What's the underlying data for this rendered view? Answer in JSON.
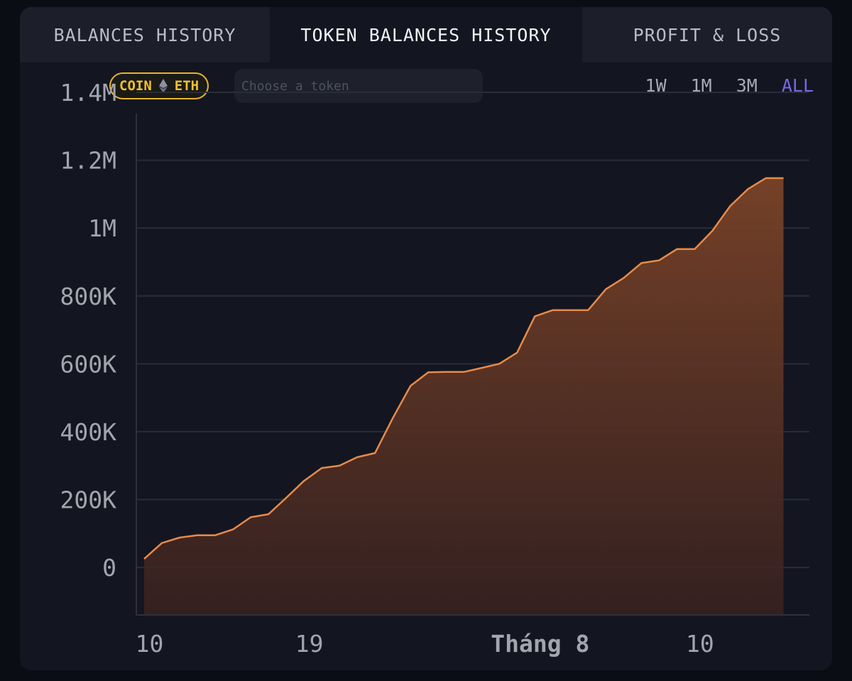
{
  "tabs": [
    {
      "label": "BALANCES HISTORY"
    },
    {
      "label": "TOKEN BALANCES HISTORY"
    },
    {
      "label": "PROFIT & LOSS"
    }
  ],
  "active_tab": 1,
  "filter": {
    "coin_label": "COIN",
    "token_label": "ETH",
    "search_placeholder": "Choose a token"
  },
  "ranges": [
    {
      "label": "1W"
    },
    {
      "label": "1M"
    },
    {
      "label": "3M"
    },
    {
      "label": "ALL"
    }
  ],
  "active_range": 3,
  "colors": {
    "line": "#e88a4a",
    "fill_top": "#7a4328",
    "active_range": "#7c66e0",
    "badge": "#f0c030"
  },
  "chart_data": {
    "type": "area",
    "ylim": [
      -140000,
      1400000
    ],
    "y_ticks": [
      {
        "value": 1400000,
        "label": "1.4M"
      },
      {
        "value": 1200000,
        "label": "1.2M"
      },
      {
        "value": 1000000,
        "label": "1M"
      },
      {
        "value": 800000,
        "label": "800K"
      },
      {
        "value": 600000,
        "label": "600K"
      },
      {
        "value": 400000,
        "label": "400K"
      },
      {
        "value": 200000,
        "label": "200K"
      },
      {
        "value": 0,
        "label": "0"
      }
    ],
    "x_range": [
      0,
      36.9
    ],
    "x_ticks": [
      {
        "index": 0.3,
        "label": "10",
        "bold": false
      },
      {
        "index": 9.3,
        "label": "19",
        "bold": false
      },
      {
        "index": 22.3,
        "label": "Tháng 8",
        "bold": true
      },
      {
        "index": 31.3,
        "label": "10",
        "bold": false
      }
    ],
    "values": [
      25000,
      72000,
      88000,
      95000,
      95000,
      112000,
      148000,
      157000,
      205000,
      255000,
      293000,
      300000,
      325000,
      337000,
      440000,
      535000,
      575000,
      576000,
      576000,
      588000,
      600000,
      633000,
      740000,
      758000,
      758000,
      758000,
      820000,
      853000,
      897000,
      905000,
      938000,
      938000,
      992000,
      1065000,
      1115000,
      1147000,
      1147000
    ],
    "grid": true
  }
}
